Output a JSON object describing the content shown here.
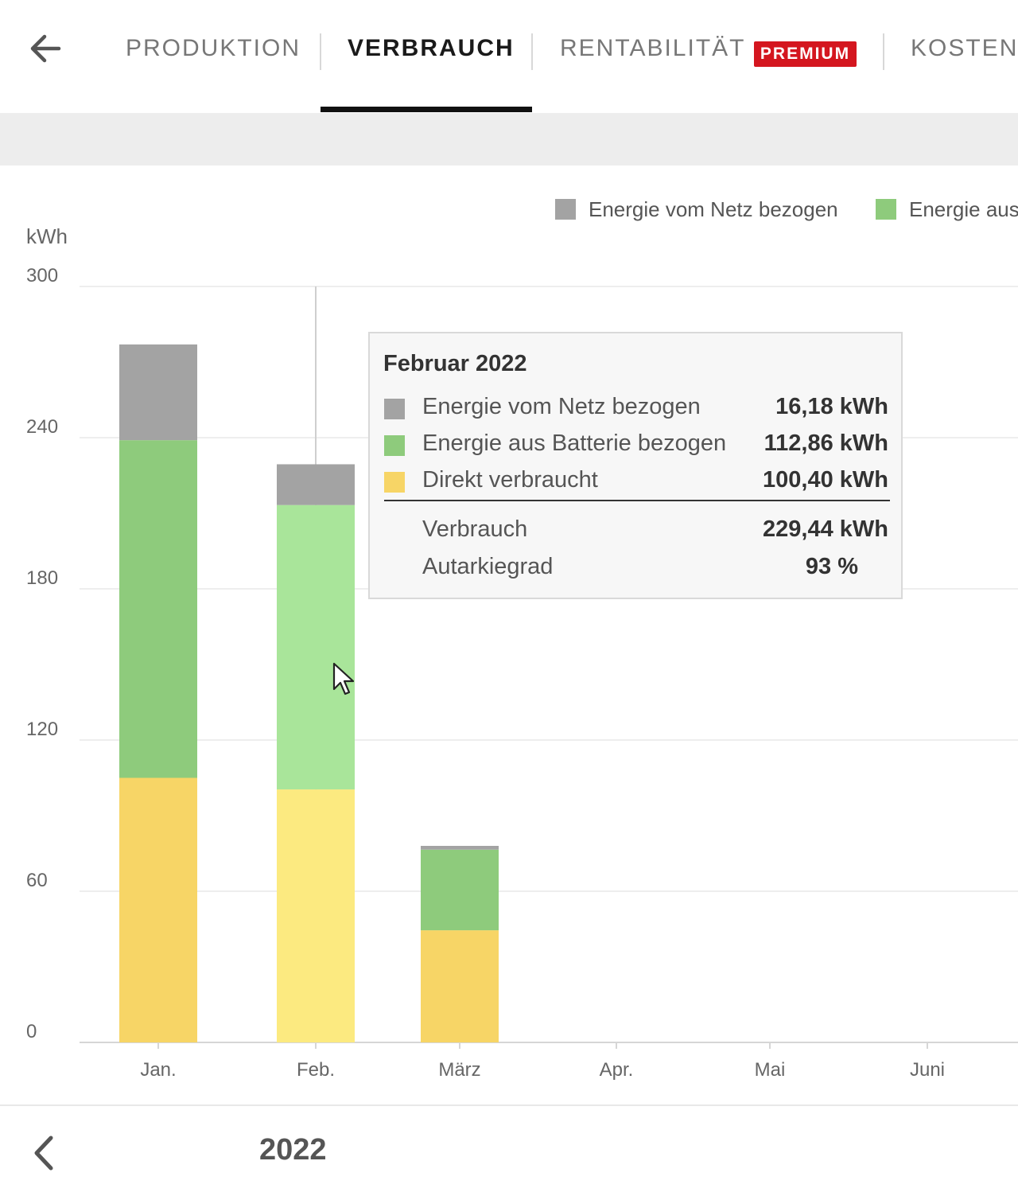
{
  "nav": {
    "tabs": [
      {
        "label": "PRODUKTION",
        "active": false
      },
      {
        "label": "VERBRAUCH",
        "active": true
      },
      {
        "label": "RENTABILITÄT",
        "active": false
      },
      {
        "label": "KOSTEN",
        "active": false
      }
    ],
    "premium_badge": "PREMIUM"
  },
  "icons": {
    "back": "arrow-left-icon",
    "prev_year": "chevron-left-icon",
    "cursor": "mouse-pointer-icon"
  },
  "colors": {
    "grid_energy": "#a3a3a3",
    "battery_energy": "#8ecb7c",
    "battery_energy_highlight": "#a9e59a",
    "direct_consumed": "#f7d566",
    "direct_consumed_highlight": "#fcea80",
    "premium": "#d4161f"
  },
  "chart_data": {
    "type": "bar",
    "stacked": true,
    "unit_label": "kWh",
    "y_ticks": [
      "0",
      "60",
      "120",
      "180",
      "240",
      "300"
    ],
    "ylim": [
      0,
      300
    ],
    "grid": true,
    "categories": [
      "Jan.",
      "Feb.",
      "März",
      "Apr.",
      "Mai",
      "Juni"
    ],
    "highlighted_category": "Feb.",
    "legend": {
      "placement": "top-right",
      "items": [
        "Energie vom Netz bezogen",
        "Energie aus"
      ]
    },
    "series": [
      {
        "name": "Direkt verbraucht",
        "values": [
          105,
          100.4,
          44.5,
          null,
          null,
          null
        ]
      },
      {
        "name": "Energie aus Batterie bezogen",
        "values": [
          134,
          112.86,
          32.0,
          null,
          null,
          null
        ]
      },
      {
        "name": "Energie vom Netz bezogen",
        "values": [
          38,
          16.18,
          1.5,
          null,
          null,
          null
        ]
      }
    ],
    "tooltip": {
      "title": "Februar 2022",
      "rows": [
        {
          "label": "Energie vom Netz bezogen",
          "value": "16,18 kWh"
        },
        {
          "label": "Energie aus Batterie bezogen",
          "value": "112,86 kWh"
        },
        {
          "label": "Direkt verbraucht",
          "value": "100,40 kWh"
        }
      ],
      "totals": [
        {
          "label": "Verbrauch",
          "value": "229,44 kWh"
        },
        {
          "label": "Autarkiegrad",
          "value": "93 %"
        }
      ]
    }
  },
  "footer": {
    "year": "2022"
  }
}
